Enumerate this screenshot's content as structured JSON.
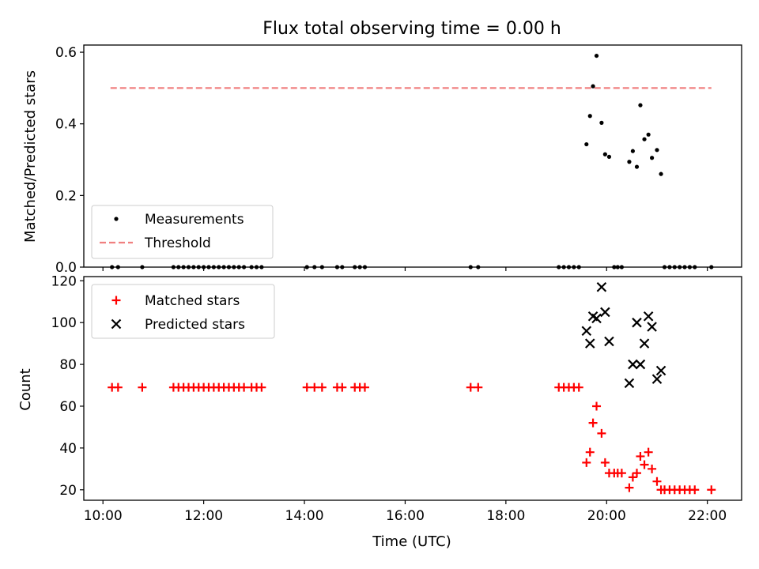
{
  "title": "Flux total observing time = 0.00 h",
  "chart_data": [
    {
      "type": "scatter",
      "ylabel": "Matched/Predicted stars",
      "xlim": [
        9.62,
        22.68
      ],
      "ylim": [
        0,
        0.62
      ],
      "yticks": [
        0.0,
        0.2,
        0.4,
        0.6
      ],
      "ytick_labels": [
        "0.0",
        "0.2",
        "0.4",
        "0.6"
      ],
      "legend_position": "lower-left",
      "series": [
        {
          "name": "Measurements",
          "marker": "dot",
          "color": "#000000",
          "x": [
            19.6,
            19.67,
            19.73,
            19.8,
            19.9,
            19.97,
            20.05,
            20.45,
            20.52,
            20.6,
            20.67,
            20.75,
            20.83,
            20.9,
            21.0,
            21.08
          ],
          "y": [
            0.343,
            0.422,
            0.505,
            0.59,
            0.403,
            0.315,
            0.308,
            0.294,
            0.324,
            0.28,
            0.452,
            0.357,
            0.37,
            0.305,
            0.327,
            0.26
          ]
        },
        {
          "name": "",
          "marker": "dot",
          "color": "#000000",
          "x": [
            10.18,
            10.3,
            10.78,
            11.4,
            11.5,
            11.6,
            11.7,
            11.8,
            11.9,
            12.0,
            12.1,
            12.2,
            12.3,
            12.4,
            12.5,
            12.6,
            12.7,
            12.8,
            12.95,
            13.05,
            13.15,
            14.05,
            14.2,
            14.35,
            14.65,
            14.75,
            15.0,
            15.1,
            15.2,
            17.3,
            17.45,
            19.05,
            19.15,
            19.25,
            19.35,
            19.45,
            20.15,
            20.22,
            20.3,
            21.15,
            21.25,
            21.35,
            21.45,
            21.55,
            21.65,
            21.75,
            22.08
          ],
          "y": [
            0,
            0,
            0,
            0,
            0,
            0,
            0,
            0,
            0,
            0,
            0,
            0,
            0,
            0,
            0,
            0,
            0,
            0,
            0,
            0,
            0,
            0,
            0,
            0,
            0,
            0,
            0,
            0,
            0,
            0,
            0,
            0,
            0,
            0,
            0,
            0,
            0,
            0,
            0,
            0,
            0,
            0,
            0,
            0,
            0,
            0,
            0
          ]
        },
        {
          "name": "Threshold",
          "type": "line",
          "style": "dashed",
          "color": "#f08080",
          "x": [
            10.15,
            22.08
          ],
          "y": [
            0.5,
            0.5
          ]
        }
      ]
    },
    {
      "type": "scatter",
      "xlabel": "Time (UTC)",
      "ylabel": "Count",
      "xlim": [
        9.62,
        22.68
      ],
      "ylim": [
        15,
        122
      ],
      "yticks": [
        20,
        40,
        60,
        80,
        100,
        120
      ],
      "ytick_labels": [
        "20",
        "40",
        "60",
        "80",
        "100",
        "120"
      ],
      "xticks": [
        10,
        12,
        14,
        16,
        18,
        20,
        22
      ],
      "xtick_labels": [
        "10:00",
        "12:00",
        "14:00",
        "16:00",
        "18:00",
        "20:00",
        "22:00"
      ],
      "legend_position": "top-left",
      "series": [
        {
          "name": "Matched stars",
          "marker": "plus",
          "color": "#ff0000",
          "x": [
            10.18,
            10.3,
            10.78,
            11.4,
            11.5,
            11.6,
            11.7,
            11.8,
            11.9,
            12.0,
            12.1,
            12.2,
            12.3,
            12.4,
            12.5,
            12.6,
            12.7,
            12.8,
            12.95,
            13.05,
            13.15,
            14.05,
            14.2,
            14.35,
            14.65,
            14.75,
            15.0,
            15.1,
            15.2,
            17.3,
            17.45,
            19.05,
            19.15,
            19.25,
            19.35,
            19.45,
            19.6,
            19.67,
            19.73,
            19.8,
            19.9,
            19.97,
            20.05,
            20.15,
            20.22,
            20.3,
            20.45,
            20.52,
            20.6,
            20.67,
            20.75,
            20.83,
            20.9,
            21.0,
            21.08,
            21.15,
            21.25,
            21.35,
            21.45,
            21.55,
            21.65,
            21.75,
            22.08
          ],
          "y": [
            69,
            69,
            69,
            69,
            69,
            69,
            69,
            69,
            69,
            69,
            69,
            69,
            69,
            69,
            69,
            69,
            69,
            69,
            69,
            69,
            69,
            69,
            69,
            69,
            69,
            69,
            69,
            69,
            69,
            69,
            69,
            69,
            69,
            69,
            69,
            69,
            33,
            38,
            52,
            60,
            47,
            33,
            28,
            28,
            28,
            28,
            21,
            26,
            28,
            36,
            32,
            38,
            30,
            24,
            20,
            20,
            20,
            20,
            20,
            20,
            20,
            20,
            20
          ]
        },
        {
          "name": "Predicted stars",
          "marker": "x",
          "color": "#000000",
          "x": [
            19.6,
            19.67,
            19.73,
            19.8,
            19.9,
            19.97,
            20.05,
            20.45,
            20.52,
            20.6,
            20.67,
            20.75,
            20.83,
            20.9,
            21.0,
            21.08
          ],
          "y": [
            96,
            90,
            103,
            102,
            117,
            105,
            91,
            71,
            80,
            100,
            80,
            90,
            103,
            98,
            73,
            77
          ]
        }
      ]
    }
  ]
}
